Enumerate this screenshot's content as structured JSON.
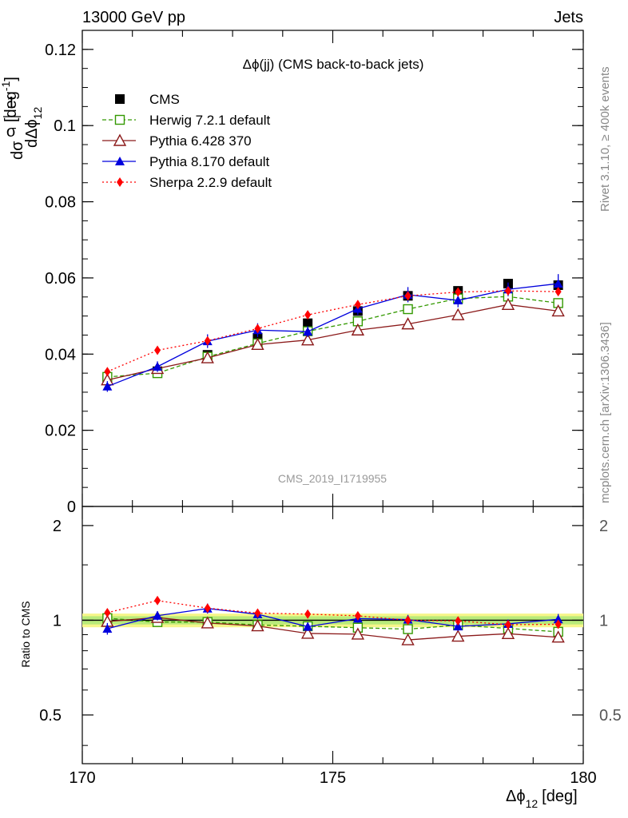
{
  "header": {
    "left": "13000 GeV pp",
    "right": "Jets"
  },
  "side_text": {
    "rivet": "Rivet 3.1.10, ≥ 400k events",
    "mcplots": "mcplots.cern.ch [arXiv:1306.3436]"
  },
  "watermark": "CMS_2019_I1719955",
  "chart_data": [
    {
      "type": "scatter",
      "panel": "main",
      "title": "Δϕ(jj) (CMS back-to-back jets)",
      "ylabel": "1/σ dσ/dΔϕ12 [deg^-1]",
      "ylabel_parts": {
        "one": "1",
        "dsigma": "dσ",
        "sigma": "σ",
        "dDeltaPhi": "dΔϕ",
        "sub": "12",
        "unit": "[deg",
        "sup": "-1",
        "close": "]"
      },
      "xlim": [
        170,
        180
      ],
      "ylim": [
        0,
        0.125
      ],
      "yticks": [
        0,
        0.02,
        0.04,
        0.06,
        0.08,
        0.1,
        0.12
      ],
      "ytick_labels": [
        "0",
        "0.02",
        "0.04",
        "0.06",
        "0.08",
        "0.1",
        "0.12"
      ],
      "x": [
        170.5,
        171.5,
        172.5,
        173.5,
        174.5,
        175.5,
        176.5,
        177.5,
        178.5,
        179.5
      ],
      "legend_position": "top-left",
      "series": [
        {
          "name": "CMS",
          "color": "#000000",
          "marker": "square",
          "line": "none",
          "values": [
            0.0335,
            0.0355,
            0.0398,
            0.0443,
            0.0481,
            0.0513,
            0.0553,
            0.0566,
            0.0585,
            0.0581
          ],
          "err": [
            0.0012,
            0.001,
            0.0012,
            0.0012,
            0.0012,
            0.0012,
            0.0013,
            0.0012,
            0.0012,
            0.0014
          ]
        },
        {
          "name": "Herwig 7.2.1 default",
          "color": "#339900",
          "marker": "open-square",
          "line": "dashed",
          "values": [
            0.034,
            0.035,
            0.0393,
            0.0428,
            0.046,
            0.0486,
            0.0518,
            0.0546,
            0.0551,
            0.0534
          ],
          "err": [
            0.0006,
            0.0005,
            0.0005,
            0.0005,
            0.0005,
            0.0005,
            0.0005,
            0.0005,
            0.0005,
            0.0005
          ]
        },
        {
          "name": "Pythia 6.428 370",
          "color": "#8b1a1a",
          "marker": "open-triangle",
          "line": "solid",
          "values": [
            0.0332,
            0.0362,
            0.039,
            0.0425,
            0.0437,
            0.0463,
            0.0479,
            0.0503,
            0.053,
            0.0513
          ],
          "err": [
            0.0005,
            0.0005,
            0.0005,
            0.0005,
            0.0005,
            0.0005,
            0.0005,
            0.0005,
            0.0005,
            0.0005
          ]
        },
        {
          "name": "Pythia 8.170 default",
          "color": "#0000dd",
          "marker": "triangle",
          "line": "solid",
          "values": [
            0.0315,
            0.0367,
            0.0434,
            0.0463,
            0.0459,
            0.0519,
            0.0556,
            0.0541,
            0.057,
            0.0585
          ],
          "err": [
            0.0014,
            0.0014,
            0.0018,
            0.0018,
            0.0014,
            0.0016,
            0.002,
            0.0018,
            0.0018,
            0.0025
          ]
        },
        {
          "name": "Sherpa 2.2.9 default",
          "color": "#ff0000",
          "marker": "diamond",
          "line": "dotted",
          "values": [
            0.0354,
            0.041,
            0.0435,
            0.0467,
            0.0503,
            0.053,
            0.0553,
            0.0563,
            0.0566,
            0.0564
          ],
          "err": [
            0.0006,
            0.0006,
            0.0006,
            0.0006,
            0.0006,
            0.0008,
            0.0008,
            0.0008,
            0.0008,
            0.0008
          ]
        }
      ]
    },
    {
      "type": "scatter",
      "panel": "ratio",
      "ylabel": "Ratio to CMS",
      "xlabel": "Δϕ12 [deg]",
      "xlabel_parts": {
        "delta": "Δϕ",
        "sub": "12",
        "unit": "[deg]"
      },
      "xlim": [
        170,
        180
      ],
      "ylim": [
        0.35,
        2.3
      ],
      "yscale": "log",
      "yticks": [
        0.5,
        1,
        2
      ],
      "ytick_labels": [
        "0.5",
        "1",
        "2"
      ],
      "xticks": [
        170,
        175,
        180
      ],
      "xtick_labels": [
        "170",
        "175",
        "180"
      ],
      "x": [
        170.5,
        171.5,
        172.5,
        173.5,
        174.5,
        175.5,
        176.5,
        177.5,
        178.5,
        179.5
      ],
      "band_inner": 0.03,
      "band_outer": 0.05,
      "series": [
        {
          "name": "Herwig 7.2.1 default",
          "values": [
            1.015,
            0.987,
            0.987,
            0.966,
            0.957,
            0.947,
            0.937,
            0.965,
            0.942,
            0.919
          ],
          "err": [
            0,
            0,
            0,
            0,
            0,
            0,
            0,
            0,
            0,
            0
          ]
        },
        {
          "name": "Pythia 6.428 370",
          "values": [
            0.991,
            1.02,
            0.98,
            0.959,
            0.908,
            0.903,
            0.866,
            0.889,
            0.906,
            0.883
          ],
          "err": [
            0,
            0,
            0,
            0,
            0,
            0,
            0,
            0,
            0,
            0
          ]
        },
        {
          "name": "Pythia 8.170 default",
          "values": [
            0.94,
            1.034,
            1.09,
            1.045,
            0.954,
            1.012,
            1.005,
            0.956,
            0.974,
            1.007
          ],
          "err": [
            0.04,
            0.035,
            0.04,
            0.035,
            0.03,
            0.03,
            0.035,
            0.03,
            0.03,
            0.04
          ]
        },
        {
          "name": "Sherpa 2.2.9 default",
          "values": [
            1.057,
            1.155,
            1.093,
            1.054,
            1.046,
            1.033,
            1.0,
            0.995,
            0.968,
            0.971
          ],
          "err": [
            0,
            0,
            0,
            0,
            0,
            0,
            0,
            0,
            0,
            0
          ]
        }
      ]
    }
  ]
}
